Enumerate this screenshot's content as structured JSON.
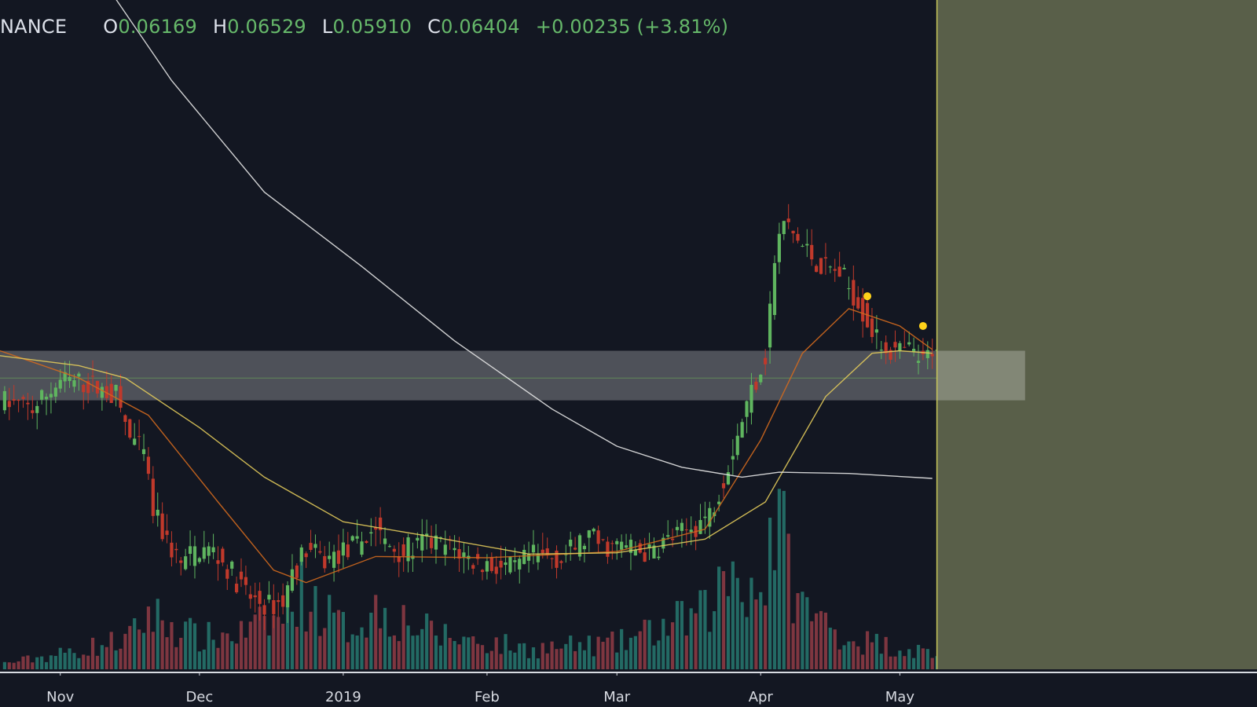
{
  "header": {
    "symbol": "NANCE",
    "open_label": "O",
    "open": "0.06169",
    "high_label": "H",
    "high": "0.06529",
    "low_label": "L",
    "low": "0.05910",
    "close_label": "C",
    "close": "0.06404",
    "change": "+0.00235 (+3.81%)"
  },
  "colors": {
    "background": "#131722",
    "up": "#5fb55f",
    "down": "#c0392b",
    "volume_up": "#26736b",
    "volume_down": "#8b3a44",
    "ma_short": "#d2691e",
    "ma_mid": "#e1c95a",
    "ma_long": "#e6e6e6",
    "zone": "#ffffff",
    "future_region": "#595f49",
    "marker": "#ffd21a"
  },
  "chart_data": {
    "type": "candlestick",
    "title": "",
    "xlabel": "",
    "ylabel": "",
    "x_tick_labels": [
      "Nov",
      "Dec",
      "2019",
      "Feb",
      "Mar",
      "Apr",
      "May"
    ],
    "x_tick_dates": [
      "2018-11-01",
      "2018-12-01",
      "2019-01-01",
      "2019-02-01",
      "2019-03-01",
      "2019-04-01",
      "2019-05-01"
    ],
    "x_range": [
      "2018-10-19",
      "2019-07-17"
    ],
    "y_range": [
      0.0375,
      0.0915
    ],
    "grid": false,
    "price_path": [
      [
        "2018-10-19",
        0.0592
      ],
      [
        "2018-10-26",
        0.0585
      ],
      [
        "2018-11-01",
        0.0608
      ],
      [
        "2018-11-07",
        0.0605
      ],
      [
        "2018-11-13",
        0.0596
      ],
      [
        "2018-11-16",
        0.0562
      ],
      [
        "2018-11-19",
        0.0548
      ],
      [
        "2018-11-21",
        0.0502
      ],
      [
        "2018-11-24",
        0.0478
      ],
      [
        "2018-11-27",
        0.046
      ],
      [
        "2018-12-01",
        0.0472
      ],
      [
        "2018-12-04",
        0.047
      ],
      [
        "2018-12-08",
        0.0452
      ],
      [
        "2018-12-12",
        0.0432
      ],
      [
        "2018-12-16",
        0.0426
      ],
      [
        "2018-12-19",
        0.043
      ],
      [
        "2018-12-21",
        0.0452
      ],
      [
        "2018-12-24",
        0.0472
      ],
      [
        "2018-12-28",
        0.0462
      ],
      [
        "2019-01-01",
        0.047
      ],
      [
        "2019-01-04",
        0.0475
      ],
      [
        "2019-01-08",
        0.049
      ],
      [
        "2019-01-10",
        0.0476
      ],
      [
        "2019-01-14",
        0.047
      ],
      [
        "2019-01-19",
        0.0478
      ],
      [
        "2019-01-25",
        0.0472
      ],
      [
        "2019-01-29",
        0.0462
      ],
      [
        "2019-02-03",
        0.0458
      ],
      [
        "2019-02-07",
        0.0455
      ],
      [
        "2019-02-10",
        0.0466
      ],
      [
        "2019-02-17",
        0.0465
      ],
      [
        "2019-02-23",
        0.0482
      ],
      [
        "2019-02-26",
        0.0474
      ],
      [
        "2019-03-03",
        0.0474
      ],
      [
        "2019-03-08",
        0.0468
      ],
      [
        "2019-03-11",
        0.0478
      ],
      [
        "2019-03-16",
        0.0486
      ],
      [
        "2019-03-21",
        0.05
      ],
      [
        "2019-03-24",
        0.053
      ],
      [
        "2019-03-27",
        0.0565
      ],
      [
        "2019-03-30",
        0.06
      ],
      [
        "2019-04-02",
        0.0628
      ],
      [
        "2019-04-04",
        0.0705
      ],
      [
        "2019-04-06",
        0.0736
      ],
      [
        "2019-04-10",
        0.0716
      ],
      [
        "2019-04-14",
        0.07
      ],
      [
        "2019-04-18",
        0.0695
      ],
      [
        "2019-04-22",
        0.0672
      ],
      [
        "2019-04-26",
        0.064
      ],
      [
        "2019-04-30",
        0.063
      ],
      [
        "2019-05-03",
        0.0632
      ],
      [
        "2019-05-06",
        0.0622
      ],
      [
        "2019-05-09",
        0.064
      ]
    ],
    "volume_path": [
      [
        "2018-10-19",
        0.02
      ],
      [
        "2018-11-01",
        0.06
      ],
      [
        "2018-11-16",
        0.12
      ],
      [
        "2018-11-20",
        0.22
      ],
      [
        "2018-12-01",
        0.12
      ],
      [
        "2018-12-10",
        0.14
      ],
      [
        "2018-12-19",
        0.2
      ],
      [
        "2018-12-22",
        0.32
      ],
      [
        "2019-01-01",
        0.16
      ],
      [
        "2019-01-09",
        0.24
      ],
      [
        "2019-01-20",
        0.14
      ],
      [
        "2019-02-10",
        0.08
      ],
      [
        "2019-03-01",
        0.1
      ],
      [
        "2019-03-20",
        0.22
      ],
      [
        "2019-03-26",
        0.4
      ],
      [
        "2019-04-01",
        0.3
      ],
      [
        "2019-04-04",
        0.6
      ],
      [
        "2019-04-10",
        0.24
      ],
      [
        "2019-04-20",
        0.12
      ],
      [
        "2019-05-09",
        0.06
      ]
    ],
    "series": [
      {
        "type": "line",
        "points": [
          [
            "2018-10-19",
            0.0632
          ],
          [
            "2018-11-05",
            0.061
          ],
          [
            "2018-11-20",
            0.058
          ],
          [
            "2018-12-05",
            0.051
          ],
          [
            "2018-12-17",
            0.0455
          ],
          [
            "2018-12-24",
            0.0445
          ],
          [
            "2019-01-08",
            0.0466
          ],
          [
            "2019-02-01",
            0.0465
          ],
          [
            "2019-03-01",
            0.047
          ],
          [
            "2019-03-20",
            0.0488
          ],
          [
            "2019-04-01",
            0.056
          ],
          [
            "2019-04-10",
            0.063
          ],
          [
            "2019-04-20",
            0.0666
          ],
          [
            "2019-05-01",
            0.0652
          ],
          [
            "2019-05-08",
            0.0633
          ]
        ]
      },
      {
        "type": "line",
        "points": [
          [
            "2018-10-19",
            0.0628
          ],
          [
            "2018-11-05",
            0.062
          ],
          [
            "2018-11-15",
            0.061
          ],
          [
            "2018-12-01",
            0.057
          ],
          [
            "2018-12-15",
            0.053
          ],
          [
            "2019-01-01",
            0.0494
          ],
          [
            "2019-01-20",
            0.0482
          ],
          [
            "2019-02-10",
            0.0468
          ],
          [
            "2019-03-01",
            0.0469
          ],
          [
            "2019-03-20",
            0.048
          ],
          [
            "2019-04-02",
            0.051
          ],
          [
            "2019-04-15",
            0.0595
          ],
          [
            "2019-04-25",
            0.063
          ],
          [
            "2019-05-01",
            0.0632
          ],
          [
            "2019-05-08",
            0.063
          ]
        ]
      },
      {
        "type": "line",
        "points": [
          [
            "2018-11-10",
            0.0932
          ],
          [
            "2018-11-25",
            0.085
          ],
          [
            "2018-12-15",
            0.076
          ],
          [
            "2019-01-05",
            0.07
          ],
          [
            "2019-01-25",
            0.064
          ],
          [
            "2019-02-15",
            0.0585
          ],
          [
            "2019-03-01",
            0.0555
          ],
          [
            "2019-03-15",
            0.0538
          ],
          [
            "2019-03-28",
            0.053
          ],
          [
            "2019-04-05",
            0.0534
          ],
          [
            "2019-04-20",
            0.0533
          ],
          [
            "2019-05-08",
            0.0529
          ]
        ]
      }
    ],
    "reference_band": {
      "from": 0.0592,
      "to": 0.0632,
      "end_date": "2019-05-28"
    },
    "reference_line": 0.061,
    "future_region_start": "2019-05-09",
    "markers": [
      {
        "date": "2019-04-24",
        "value": 0.0676
      },
      {
        "date": "2019-05-06",
        "value": 0.0652
      }
    ]
  }
}
